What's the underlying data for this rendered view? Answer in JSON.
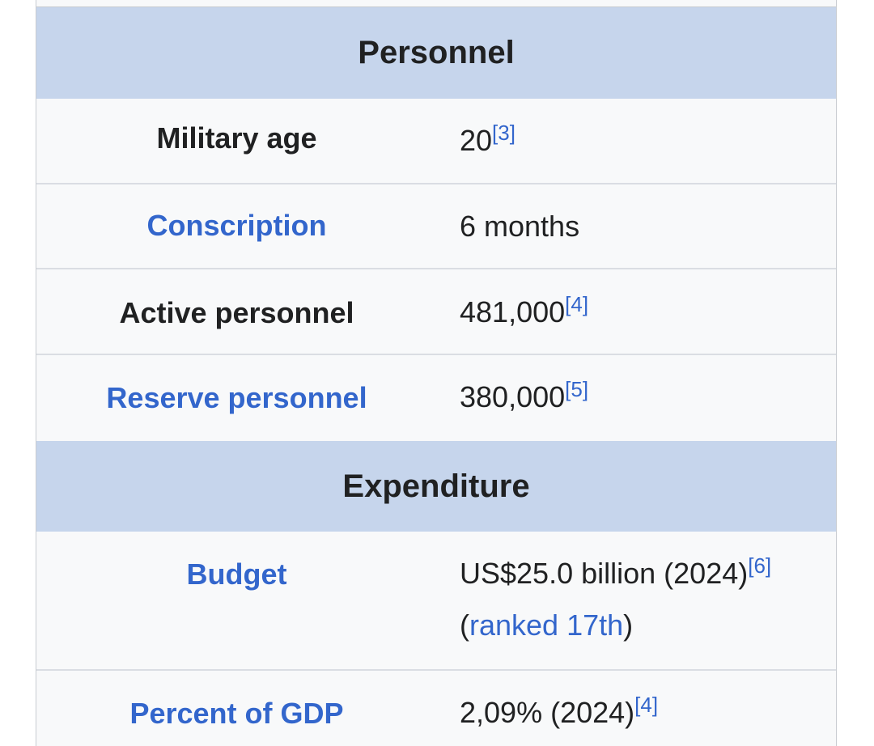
{
  "sections": [
    {
      "title": "Personnel",
      "rows": [
        {
          "label": "Military age",
          "value": "20",
          "ref": "[3]"
        },
        {
          "label": "Conscription",
          "value": "6 months"
        },
        {
          "label": "Active personnel",
          "value": "481,000",
          "ref": "[4]"
        },
        {
          "label": "Reserve personnel",
          "value": "380,000",
          "ref": "[5]"
        }
      ]
    },
    {
      "title": "Expenditure",
      "rows": [
        {
          "label": "Budget",
          "value": "US$25.0 billion (2024)",
          "ref": "[6]",
          "extra_open": "(",
          "extra_link": "ranked 17th",
          "extra_close": ")"
        },
        {
          "label": "Percent of GDP",
          "value": "2,09% (2024)",
          "ref": "[4]"
        }
      ]
    }
  ],
  "colors": {
    "header_bg": "#c6d5ec",
    "link": "#3366cc",
    "body_bg": "#f8f9fa"
  }
}
